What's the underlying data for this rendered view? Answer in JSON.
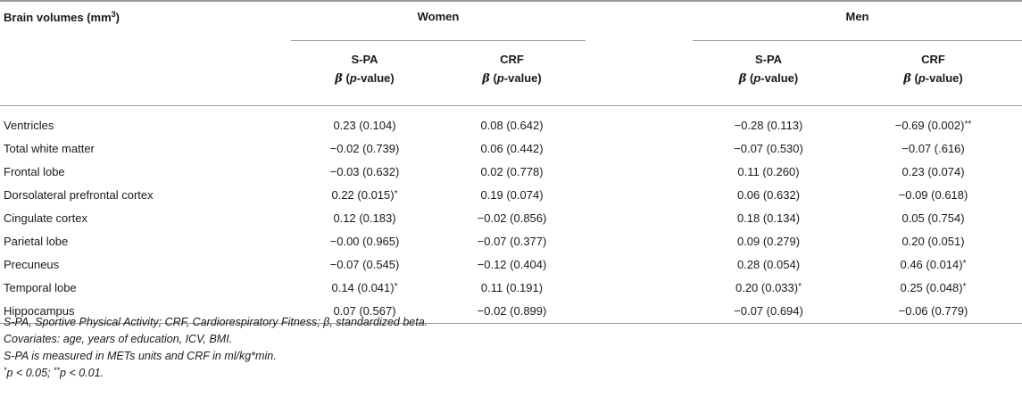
{
  "table": {
    "row_header_label": "Brain volumes (mm",
    "row_header_sup": "3",
    "row_header_close": ")",
    "groups": [
      "Women",
      "Men"
    ],
    "columns": [
      {
        "label": "S-PA",
        "beta": "β",
        "sub": "value"
      },
      {
        "label": "CRF",
        "beta": "β",
        "sub": "value"
      },
      {
        "label": "S-PA",
        "beta": "β",
        "sub": "value"
      },
      {
        "label": "CRF",
        "beta": "β",
        "sub": "value"
      }
    ],
    "rows": [
      {
        "label": "Ventricles",
        "values": [
          {
            "v": "0.23 (0.104)",
            "m": ""
          },
          {
            "v": "0.08 (0.642)",
            "m": ""
          },
          {
            "v": "−0.28 (0.113)",
            "m": ""
          },
          {
            "v": "−0.69 (0.002)",
            "m": "**"
          }
        ]
      },
      {
        "label": "Total white matter",
        "values": [
          {
            "v": "−0.02 (0.739)",
            "m": ""
          },
          {
            "v": "0.06 (0.442)",
            "m": ""
          },
          {
            "v": "−0.07 (0.530)",
            "m": ""
          },
          {
            "v": "−0.07 (.616)",
            "m": ""
          }
        ]
      },
      {
        "label": "Frontal lobe",
        "values": [
          {
            "v": "−0.03 (0.632)",
            "m": ""
          },
          {
            "v": "0.02 (0.778)",
            "m": ""
          },
          {
            "v": "0.11 (0.260)",
            "m": ""
          },
          {
            "v": "0.23 (0.074)",
            "m": ""
          }
        ]
      },
      {
        "label": "Dorsolateral prefrontal cortex",
        "values": [
          {
            "v": "0.22 (0.015)",
            "m": "*"
          },
          {
            "v": "0.19 (0.074)",
            "m": ""
          },
          {
            "v": "0.06 (0.632)",
            "m": ""
          },
          {
            "v": "−0.09 (0.618)",
            "m": ""
          }
        ]
      },
      {
        "label": "Cingulate cortex",
        "values": [
          {
            "v": "0.12 (0.183)",
            "m": ""
          },
          {
            "v": "−0.02 (0.856)",
            "m": ""
          },
          {
            "v": "0.18 (0.134)",
            "m": ""
          },
          {
            "v": "0.05 (0.754)",
            "m": ""
          }
        ]
      },
      {
        "label": "Parietal lobe",
        "values": [
          {
            "v": "−0.00 (0.965)",
            "m": ""
          },
          {
            "v": "−0.07 (0.377)",
            "m": ""
          },
          {
            "v": "0.09 (0.279)",
            "m": ""
          },
          {
            "v": "0.20 (0.051)",
            "m": ""
          }
        ]
      },
      {
        "label": "Precuneus",
        "values": [
          {
            "v": "−0.07 (0.545)",
            "m": ""
          },
          {
            "v": "−0.12 (0.404)",
            "m": ""
          },
          {
            "v": "0.28 (0.054)",
            "m": ""
          },
          {
            "v": "0.46 (0.014)",
            "m": "*"
          }
        ]
      },
      {
        "label": "Temporal lobe",
        "values": [
          {
            "v": "0.14 (0.041)",
            "m": "*"
          },
          {
            "v": "0.11 (0.191)",
            "m": ""
          },
          {
            "v": "0.20 (0.033)",
            "m": "*"
          },
          {
            "v": "0.25 (0.048)",
            "m": "*"
          }
        ]
      },
      {
        "label": "Hippocampus",
        "values": [
          {
            "v": "0.07 (0.567)",
            "m": ""
          },
          {
            "v": "−0.02 (0.899)",
            "m": ""
          },
          {
            "v": "−0.07 (0.694)",
            "m": ""
          },
          {
            "v": "−0.06 (0.779)",
            "m": ""
          }
        ]
      }
    ]
  },
  "notes": {
    "abbreviations": "S-PA, Sportive Physical Activity; CRF, Cardiorespiratory Fitness; β, standardized beta.",
    "covariates": "Covariates: age, years of education, ICV, BMI.",
    "units": "S-PA is measured in METs units and CRF in ml/kg*min.",
    "sig1_mark": "*",
    "sig1_text": "p < 0.05; ",
    "sig2_mark": "**",
    "sig2_text": "p < 0.01."
  }
}
